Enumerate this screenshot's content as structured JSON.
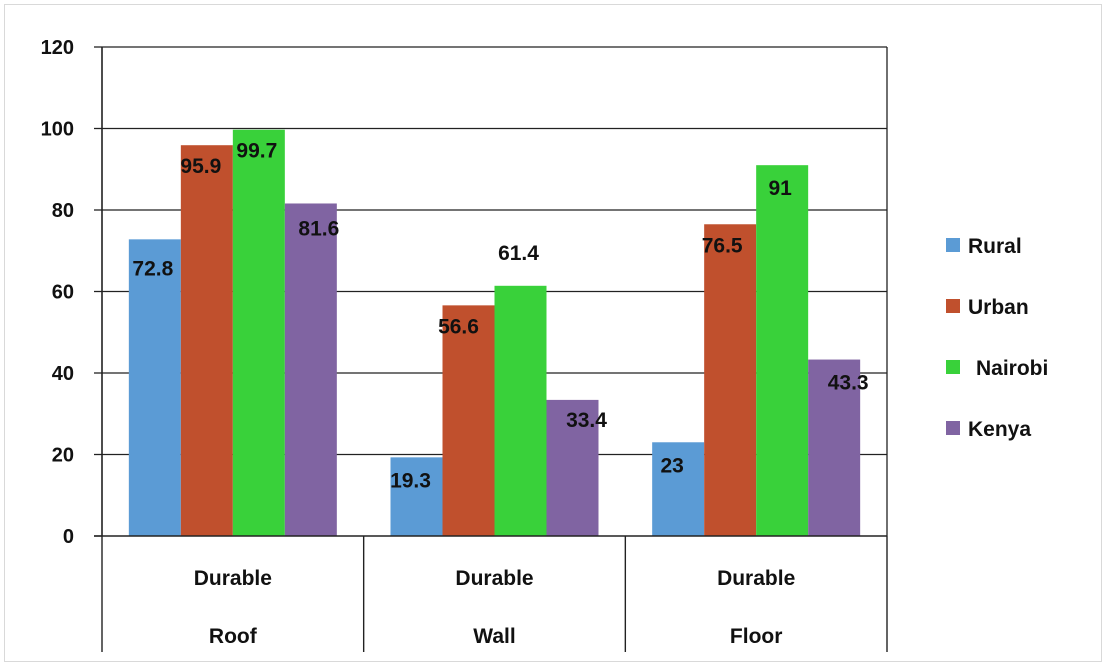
{
  "chart_data": {
    "type": "bar",
    "categories": [
      {
        "line1": "Durable",
        "line2": "Roof"
      },
      {
        "line1": "Durable",
        "line2": "Wall"
      },
      {
        "line1": "Durable",
        "line2": "Floor"
      }
    ],
    "series": [
      {
        "name": "Rural",
        "color": "#5b9bd5",
        "values": [
          72.8,
          19.3,
          23
        ]
      },
      {
        "name": "Urban",
        "color": "#c0502d",
        "values": [
          95.9,
          56.6,
          76.5
        ]
      },
      {
        "name": "Nairobi",
        "color": "#39d13a",
        "values": [
          99.7,
          61.4,
          91
        ]
      },
      {
        "name": "Kenya",
        "color": "#8064a2",
        "values": [
          81.6,
          33.4,
          43.3
        ]
      }
    ],
    "ylim": [
      0,
      120
    ],
    "yticks": [
      0,
      20,
      40,
      60,
      80,
      100,
      120
    ],
    "grid": true,
    "legend_position": "right",
    "title": "",
    "xlabel": "",
    "ylabel": ""
  }
}
